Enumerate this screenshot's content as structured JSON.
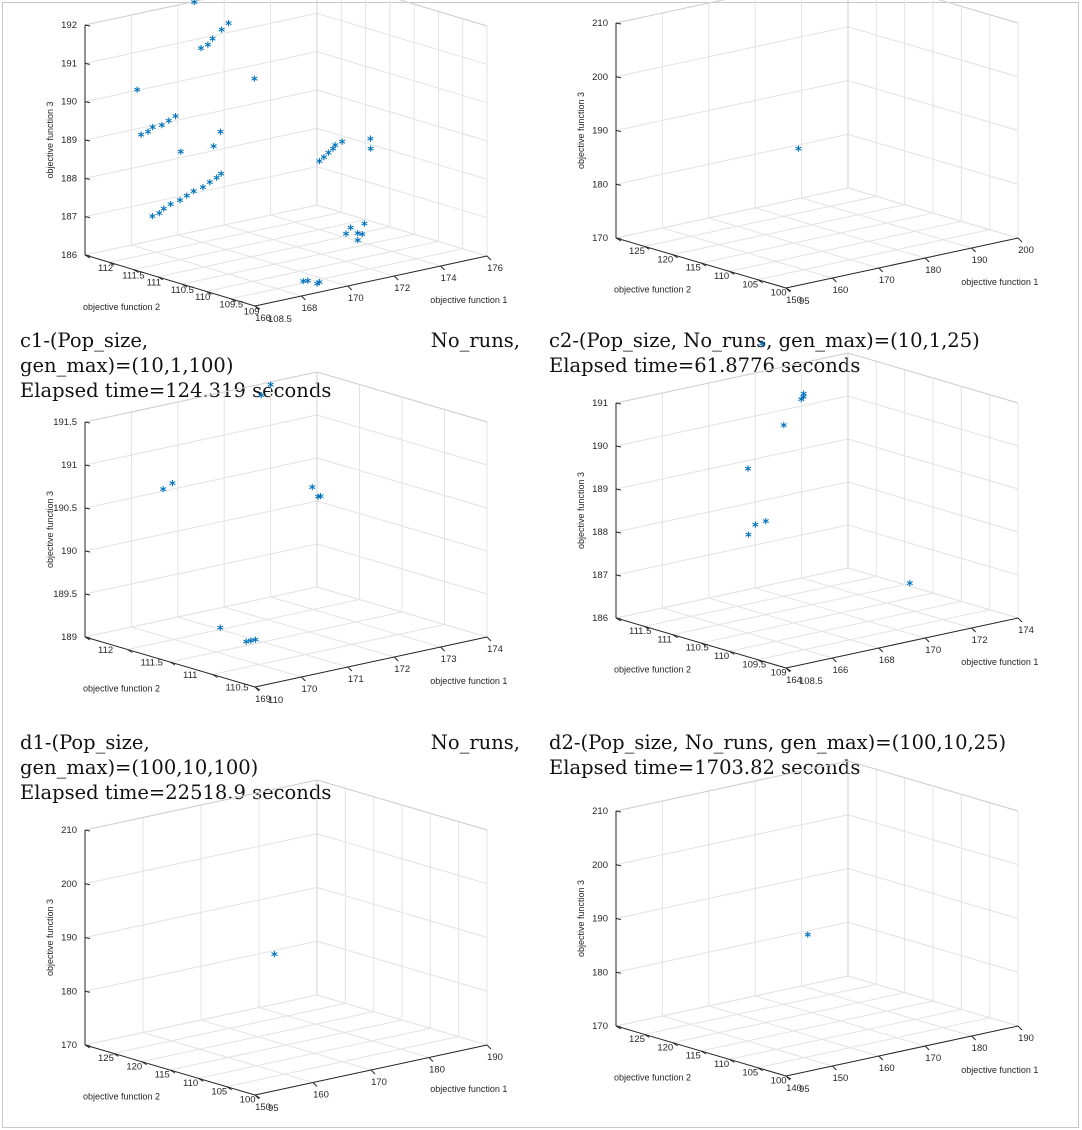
{
  "figure": {
    "panels": [
      {
        "id": "c1",
        "caption_line1_left": "c1-(Pop_size,",
        "caption_line1_right": "No_runs,",
        "caption_line2": "gen_max)=(10,1,100)",
        "caption_line3": "Elapsed time=124.319 seconds"
      },
      {
        "id": "c2",
        "caption_line1": "c2-(Pop_size, No_runs, gen_max)=(10,1,25)",
        "caption_line2": "Elapsed time=61.8776 seconds"
      },
      {
        "id": "d1",
        "caption_line1_left": "d1-(Pop_size,",
        "caption_line1_right": "No_runs,",
        "caption_line2": "gen_max)=(100,10,100)",
        "caption_line3": "Elapsed time=22518.9 seconds"
      },
      {
        "id": "d2",
        "caption_line1": "d2-(Pop_size, No_runs, gen_max)=(100,10,25)",
        "caption_line2": "Elapsed time=1703.82 seconds"
      },
      {
        "id": "e1"
      },
      {
        "id": "e2"
      }
    ]
  },
  "chart_data": [
    {
      "id": "c1",
      "type": "scatter",
      "marker": "*",
      "color": "#0072BD",
      "grid": true,
      "xlabel": "objective function 1",
      "ylabel": "objective function 2",
      "zlabel": "objective function 3",
      "xlim": [
        166,
        176
      ],
      "ylim": [
        108.5,
        112
      ],
      "zlim": [
        186,
        192
      ],
      "xticks": [
        166,
        168,
        170,
        172,
        174,
        176
      ],
      "yticks": [
        108.5,
        109,
        109.5,
        110,
        110.5,
        111,
        111.5,
        112
      ],
      "zticks": [
        186,
        187,
        188,
        189,
        190,
        191,
        192
      ],
      "points": [
        [
          168.5,
          108.7,
          186.2
        ],
        [
          168.8,
          108.75,
          186.15
        ],
        [
          169.1,
          108.7,
          186.05
        ],
        [
          169.3,
          108.75,
          186.05
        ],
        [
          171.6,
          109.3,
          186.8
        ],
        [
          171.9,
          109.35,
          186.9
        ],
        [
          172.1,
          109.3,
          186.75
        ],
        [
          172.0,
          109.25,
          186.6
        ],
        [
          172.3,
          109.3,
          186.7
        ],
        [
          172.6,
          109.4,
          186.9
        ],
        [
          166.6,
          110.9,
          187.3
        ],
        [
          166.9,
          110.9,
          187.35
        ],
        [
          167.2,
          110.95,
          187.4
        ],
        [
          167.6,
          111.0,
          187.45
        ],
        [
          168.0,
          111.0,
          187.5
        ],
        [
          168.4,
          111.05,
          187.55
        ],
        [
          168.8,
          111.1,
          187.6
        ],
        [
          169.2,
          111.1,
          187.65
        ],
        [
          169.6,
          111.15,
          187.7
        ],
        [
          170.0,
          111.2,
          187.75
        ],
        [
          170.3,
          111.25,
          187.8
        ],
        [
          173.8,
          110.9,
          187.8
        ],
        [
          174.1,
          110.95,
          187.85
        ],
        [
          174.4,
          111.0,
          187.9
        ],
        [
          174.7,
          111.05,
          187.95
        ],
        [
          174.9,
          111.1,
          188.0
        ],
        [
          175.2,
          111.1,
          188.05
        ],
        [
          175.8,
          110.8,
          187.9
        ],
        [
          176.0,
          110.9,
          188.1
        ],
        [
          168.0,
          111.8,
          188.9
        ],
        [
          168.3,
          111.8,
          188.95
        ],
        [
          168.6,
          111.85,
          189.0
        ],
        [
          169.0,
          111.85,
          189.0
        ],
        [
          169.4,
          111.9,
          189.05
        ],
        [
          169.8,
          111.95,
          189.1
        ],
        [
          169.5,
          111.7,
          188.3
        ],
        [
          170.5,
          111.5,
          188.4
        ],
        [
          170.9,
          111.55,
          188.7
        ],
        [
          173.3,
          112.0,
          189.6
        ],
        [
          171.0,
          112.0,
          190.7
        ],
        [
          171.3,
          112.0,
          190.75
        ],
        [
          171.6,
          112.05,
          190.85
        ],
        [
          172.1,
          112.1,
          191.0
        ],
        [
          172.5,
          112.15,
          191.1
        ],
        [
          167.2,
          111.5,
          190.3
        ],
        [
          170.5,
          111.9,
          192.0
        ],
        [
          174.0,
          112.0,
          192.3
        ],
        [
          174.3,
          112.05,
          192.45
        ]
      ]
    },
    {
      "id": "c2",
      "type": "scatter",
      "marker": "*",
      "color": "#0072BD",
      "grid": true,
      "xlabel": "objective function 1",
      "ylabel": "objective function 2",
      "zlabel": "objective function 3",
      "xlim": [
        150,
        200
      ],
      "ylim": [
        95,
        125
      ],
      "zlim": [
        170,
        210
      ],
      "xticks": [
        150,
        160,
        170,
        180,
        190,
        200
      ],
      "yticks": [
        95,
        100,
        105,
        110,
        115,
        120,
        125
      ],
      "zticks": [
        170,
        180,
        190,
        200,
        210
      ],
      "points": [
        [
          171,
          110,
          187
        ]
      ]
    },
    {
      "id": "d1",
      "type": "scatter",
      "marker": "*",
      "color": "#0072BD",
      "grid": true,
      "xlabel": "objective function 1",
      "ylabel": "objective function 2",
      "zlabel": "objective function 3",
      "xlim": [
        169,
        174
      ],
      "ylim": [
        110,
        112
      ],
      "zlim": [
        189,
        191.5
      ],
      "xticks": [
        169,
        170,
        171,
        172,
        173,
        174
      ],
      "yticks": [
        110,
        110.5,
        111,
        111.5,
        112
      ],
      "zticks": [
        189,
        189.5,
        190,
        190.5,
        191,
        191.5
      ],
      "points": [
        [
          169.9,
          110.9,
          189.3
        ],
        [
          170.0,
          110.65,
          189.2
        ],
        [
          170.1,
          110.65,
          189.2
        ],
        [
          170.2,
          110.65,
          189.2
        ],
        [
          173.35,
          111.7,
          190.3
        ],
        [
          173.75,
          111.85,
          190.1
        ],
        [
          173.8,
          111.85,
          190.1
        ],
        [
          170.5,
          111.9,
          190.55
        ],
        [
          170.7,
          111.9,
          190.6
        ],
        [
          172.8,
          112.0,
          191.35
        ],
        [
          173.0,
          112.0,
          191.45
        ]
      ]
    },
    {
      "id": "d2",
      "type": "scatter",
      "marker": "*",
      "color": "#0072BD",
      "grid": true,
      "xlabel": "objective function 1",
      "ylabel": "objective function 2",
      "zlabel": "objective function 3",
      "xlim": [
        164,
        174
      ],
      "ylim": [
        108.5,
        111.5
      ],
      "zlim": [
        186,
        191
      ],
      "xticks": [
        164,
        166,
        168,
        170,
        172,
        174
      ],
      "yticks": [
        108.5,
        109,
        109.5,
        110,
        110.5,
        111,
        111.5
      ],
      "zticks": [
        186,
        187,
        188,
        189,
        190,
        191
      ],
      "points": [
        [
          173.0,
          110.0,
          186.3
        ],
        [
          168.0,
          110.8,
          187.7
        ],
        [
          168.3,
          110.8,
          187.9
        ],
        [
          168.5,
          110.7,
          188.0
        ],
        [
          169.2,
          111.3,
          188.9
        ],
        [
          170.5,
          111.2,
          189.8
        ],
        [
          171.5,
          111.3,
          190.25
        ],
        [
          171.6,
          111.3,
          190.3
        ],
        [
          171.65,
          111.32,
          190.35
        ],
        [
          170.3,
          111.5,
          191.6
        ]
      ]
    },
    {
      "id": "e1",
      "type": "scatter",
      "marker": "*",
      "color": "#0072BD",
      "grid": true,
      "xlabel": "objective function 1",
      "ylabel": "objective function 2",
      "zlabel": "objective function 3",
      "xlim": [
        150,
        190
      ],
      "ylim": [
        95,
        125
      ],
      "zlim": [
        170,
        210
      ],
      "xticks": [
        150,
        160,
        170,
        180,
        190
      ],
      "yticks": [
        95,
        100,
        105,
        110,
        115,
        120,
        125
      ],
      "zticks": [
        170,
        180,
        190,
        200,
        210
      ],
      "points": [
        [
          168,
          110,
          187
        ]
      ]
    },
    {
      "id": "e2",
      "type": "scatter",
      "marker": "*",
      "color": "#0072BD",
      "grid": true,
      "xlabel": "objective function 1",
      "ylabel": "objective function 2",
      "zlabel": "objective function 3",
      "xlim": [
        140,
        190
      ],
      "ylim": [
        95,
        125
      ],
      "zlim": [
        170,
        210
      ],
      "xticks": [
        140,
        150,
        160,
        170,
        180,
        190
      ],
      "yticks": [
        95,
        100,
        105,
        110,
        115,
        120,
        125
      ],
      "zticks": [
        170,
        180,
        190,
        200,
        210
      ],
      "points": [
        [
          163,
          110,
          187
        ]
      ]
    }
  ]
}
